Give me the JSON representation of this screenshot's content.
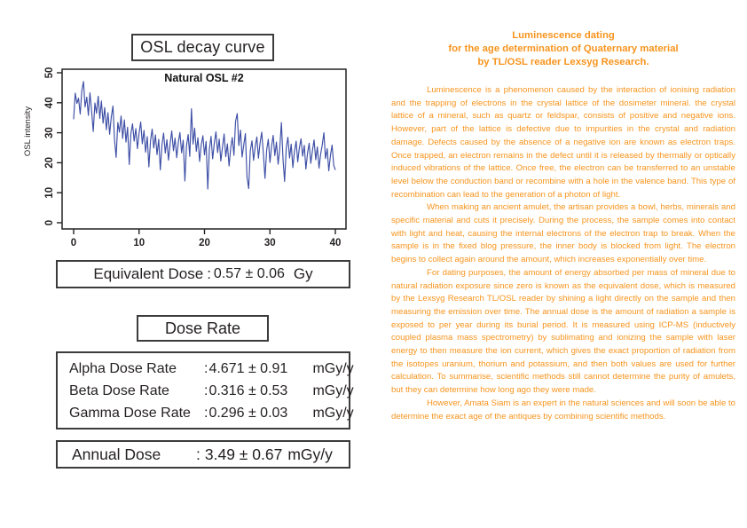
{
  "colors": {
    "accent_orange": "#f7941d",
    "line_blue": "#3d4ea5",
    "text_black": "#231f20",
    "box_border": "#3c3c3c"
  },
  "left_panel": {
    "chart_box_title": "OSL decay curve",
    "equivalent_dose": {
      "label": "Equivalent Dose",
      "sep": ":",
      "value": "0.57 ± 0.06",
      "unit": "Gy"
    },
    "dose_rate_title": "Dose Rate",
    "dose_rates": [
      {
        "label": "Alpha Dose Rate",
        "sep": ":",
        "value": "4.671 ± 0.91",
        "unit": "mGy/y"
      },
      {
        "label": "Beta Dose Rate",
        "sep": ":",
        "value": "0.316 ± 0.53",
        "unit": "mGy/y"
      },
      {
        "label": "Gamma Dose Rate",
        "sep": ":",
        "value": "0.296 ± 0.03",
        "unit": "mGy/y"
      }
    ],
    "annual_dose": {
      "label": "Annual Dose",
      "sep": ":",
      "value": "3.49 ± 0.67",
      "unit": "mGy/y"
    }
  },
  "chart_data": {
    "type": "line",
    "title": "Natural OSL #2",
    "xlabel": "",
    "ylabel": "OSL intensity",
    "xlim": [
      0,
      40
    ],
    "ylim": [
      0,
      50
    ],
    "xticks": [
      0,
      10,
      20,
      30,
      40
    ],
    "yticks": [
      0,
      10,
      20,
      30,
      40,
      50
    ],
    "grid": false,
    "legend": "none",
    "line_color": "#3d4ea5",
    "series": [
      {
        "name": "Natural OSL #2",
        "x_start": 0,
        "x_step": 0.25,
        "y": [
          34.5,
          43.2,
          39.8,
          41.5,
          36.2,
          44.0,
          47.1,
          38.6,
          41.9,
          35.8,
          43.3,
          37.1,
          30.4,
          39.9,
          36.5,
          42.2,
          34.8,
          40.6,
          33.2,
          38.4,
          31.0,
          36.7,
          29.5,
          35.2,
          38.9,
          27.6,
          21.8,
          33.4,
          30.2,
          35.6,
          28.1,
          34.3,
          26.9,
          31.8,
          19.4,
          29.6,
          33.0,
          27.2,
          31.4,
          24.7,
          29.9,
          33.6,
          26.3,
          30.8,
          23.5,
          28.7,
          18.6,
          27.4,
          31.2,
          24.9,
          29.3,
          22.7,
          27.8,
          17.6,
          26.1,
          29.9,
          23.2,
          27.7,
          20.9,
          26.4,
          30.6,
          24.0,
          28.2,
          21.7,
          26.8,
          30.1,
          23.3,
          27.5,
          13.9,
          25.6,
          29.4,
          22.1,
          38.0,
          26.2,
          31.5,
          23.8,
          28.3,
          20.4,
          25.9,
          29.0,
          22.6,
          27.1,
          11.2,
          24.5,
          28.8,
          21.3,
          26.6,
          30.3,
          23.4,
          27.9,
          20.6,
          25.2,
          29.6,
          22.0,
          26.3,
          18.9,
          24.8,
          28.4,
          22.5,
          33.8,
          36.4,
          25.7,
          30.9,
          21.9,
          26.0,
          29.7,
          15.3,
          11.4,
          23.9,
          27.3,
          20.8,
          25.4,
          28.6,
          21.5,
          26.7,
          30.2,
          23.0,
          14.8,
          24.3,
          27.8,
          20.1,
          25.5,
          29.1,
          22.4,
          26.9,
          19.5,
          24.6,
          33.4,
          21.2,
          13.8,
          25.0,
          28.5,
          21.6,
          26.2,
          18.4,
          23.7,
          27.2,
          20.3,
          24.9,
          28.0,
          22.2,
          25.8,
          17.9,
          23.3,
          26.5,
          19.8,
          24.1,
          27.6,
          21.0,
          25.3,
          18.2,
          22.8,
          26.1,
          30.0,
          21.4,
          24.7,
          17.3,
          22.5,
          25.9,
          19.1,
          17.6
        ]
      }
    ]
  },
  "right_panel": {
    "heading_lines": [
      "Luminescence dating",
      "for the age determination of Quaternary material",
      "by TL/OSL reader Lexsyg Research."
    ],
    "paragraphs": [
      "Luminescence is a phenomenon caused by the interaction of ionising radiation and the trapping of electrons in the crystal lattice of the dosimeter mineral. the crystal lattice of a mineral, such as quartz or feldspar, consists of positive and negative ions. However, part of the lattice is defective due to impurities in the crystal and radiation damage. Defects caused by the absence of a negative ion are known as electron traps. Once trapped, an electron remains in the defect until it is released by thermally or optically induced vibrations of the lattice. Once free, the electron can be transferred to an unstable level below the conduction band or recombine with a hole in the valence band. This type of recombination can lead to the generation of a photon of light.",
      "When making an ancient amulet, the artisan provides a bowl, herbs, minerals and specific material and cuts it precisely. During the process, the sample comes into contact with light and heat, causing the internal electrons of the electron trap to break. When the sample is in the fixed blog pressure, the inner body is blocked from light. The electron begins to collect again around the amount, which increases exponentially over time.",
      "For dating purposes, the amount of energy absorbed per mass of mineral due to natural radiation exposure since zero is known as the equivalent dose, which is measured by the Lexsyg Research TL/OSL reader by shining a light directly on the sample and then measuring the emission over time. The annual dose is the amount of radiation a sample is exposed to per year during its burial period. It is measured using ICP-MS (inductively coupled plasma mass spectrometry) by sublimating and ionizing the sample with laser energy to then measure the ion current, which gives the exact proportion of radiation from the isotopes uranium, thorium and potassium, and then both values are used for further calculation. To summarise, scientific methods still cannot determine the purity of amulets, but they can determine how long ago they were made.",
      "However, Amata Siam is an expert in the natural sciences and will soon be able to determine the exact age of the antiques by combining scientific methods."
    ]
  }
}
